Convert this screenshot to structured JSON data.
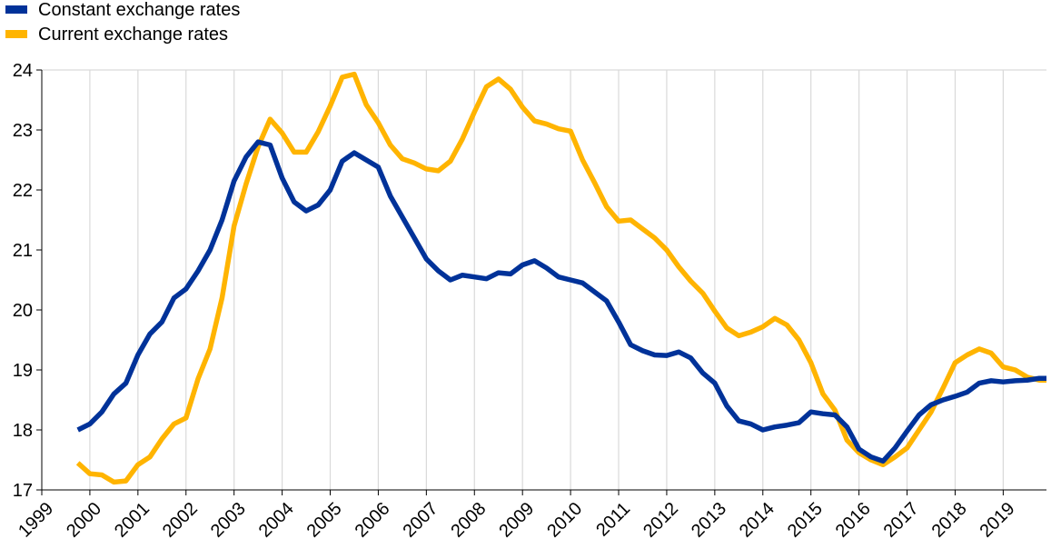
{
  "chart_data": {
    "type": "line",
    "title": "",
    "xlabel": "",
    "ylabel": "",
    "ylim": [
      17,
      24
    ],
    "yticks": [
      "17",
      "18",
      "19",
      "20",
      "21",
      "22",
      "23",
      "24"
    ],
    "xlim": [
      1999,
      2019.9
    ],
    "xticks": [
      "1999",
      "2000",
      "2001",
      "2002",
      "2003",
      "2004",
      "2005",
      "2006",
      "2007",
      "2008",
      "2009",
      "2010",
      "2011",
      "2012",
      "2013",
      "2014",
      "2015",
      "2016",
      "2017",
      "2018",
      "2019"
    ],
    "grid": "vertical",
    "legend_position": "top-left",
    "series": [
      {
        "name": "Constant exchange rates",
        "color": "#003299",
        "x": [
          1999.75,
          2000.0,
          2000.25,
          2000.5,
          2000.75,
          2001.0,
          2001.25,
          2001.5,
          2001.75,
          2002.0,
          2002.25,
          2002.5,
          2002.75,
          2003.0,
          2003.25,
          2003.5,
          2003.75,
          2004.0,
          2004.25,
          2004.5,
          2004.75,
          2005.0,
          2005.25,
          2005.5,
          2005.75,
          2006.0,
          2006.25,
          2006.5,
          2006.75,
          2007.0,
          2007.25,
          2007.5,
          2007.75,
          2008.0,
          2008.25,
          2008.5,
          2008.75,
          2009.0,
          2009.25,
          2009.5,
          2009.75,
          2010.0,
          2010.25,
          2010.5,
          2010.75,
          2011.0,
          2011.25,
          2011.5,
          2011.75,
          2012.0,
          2012.25,
          2012.5,
          2012.75,
          2013.0,
          2013.25,
          2013.5,
          2013.75,
          2014.0,
          2014.25,
          2014.5,
          2014.75,
          2015.0,
          2015.25,
          2015.5,
          2015.75,
          2016.0,
          2016.25,
          2016.5,
          2016.75,
          2017.0,
          2017.25,
          2017.5,
          2017.75,
          2018.0,
          2018.25,
          2018.5,
          2018.75,
          2019.0,
          2019.25,
          2019.5,
          2019.75,
          2019.9
        ],
        "values": [
          18.0,
          18.1,
          18.3,
          18.6,
          18.78,
          19.25,
          19.6,
          19.8,
          20.2,
          20.35,
          20.65,
          21.0,
          21.5,
          22.15,
          22.55,
          22.8,
          22.75,
          22.2,
          21.8,
          21.65,
          21.75,
          22.0,
          22.48,
          22.62,
          22.5,
          22.38,
          21.9,
          21.55,
          21.2,
          20.85,
          20.65,
          20.5,
          20.58,
          20.55,
          20.52,
          20.62,
          20.6,
          20.75,
          20.82,
          20.7,
          20.55,
          20.5,
          20.45,
          20.3,
          20.15,
          19.8,
          19.42,
          19.32,
          19.25,
          19.24,
          19.3,
          19.2,
          18.95,
          18.78,
          18.4,
          18.15,
          18.1,
          18.0,
          18.05,
          18.08,
          18.12,
          18.3,
          18.27,
          18.25,
          18.05,
          17.68,
          17.55,
          17.48,
          17.7,
          17.98,
          18.25,
          18.42,
          18.5,
          18.56,
          18.63,
          18.78,
          18.82,
          18.8,
          18.82,
          18.83,
          18.86,
          18.86
        ]
      },
      {
        "name": "Current exchange rates",
        "color": "#FFB400",
        "x": [
          1999.75,
          2000.0,
          2000.25,
          2000.5,
          2000.75,
          2001.0,
          2001.25,
          2001.5,
          2001.75,
          2002.0,
          2002.25,
          2002.5,
          2002.75,
          2003.0,
          2003.25,
          2003.5,
          2003.75,
          2004.0,
          2004.25,
          2004.5,
          2004.75,
          2005.0,
          2005.25,
          2005.5,
          2005.75,
          2006.0,
          2006.25,
          2006.5,
          2006.75,
          2007.0,
          2007.25,
          2007.5,
          2007.75,
          2008.0,
          2008.25,
          2008.5,
          2008.75,
          2009.0,
          2009.25,
          2009.5,
          2009.75,
          2010.0,
          2010.25,
          2010.5,
          2010.75,
          2011.0,
          2011.25,
          2011.5,
          2011.75,
          2012.0,
          2012.25,
          2012.5,
          2012.75,
          2013.0,
          2013.25,
          2013.5,
          2013.75,
          2014.0,
          2014.25,
          2014.5,
          2014.75,
          2015.0,
          2015.25,
          2015.5,
          2015.75,
          2016.0,
          2016.25,
          2016.5,
          2016.75,
          2017.0,
          2017.25,
          2017.5,
          2017.75,
          2018.0,
          2018.25,
          2018.5,
          2018.75,
          2019.0,
          2019.25,
          2019.5,
          2019.75,
          2019.9
        ],
        "values": [
          17.45,
          17.27,
          17.25,
          17.13,
          17.15,
          17.42,
          17.55,
          17.85,
          18.1,
          18.2,
          18.85,
          19.35,
          20.2,
          21.4,
          22.1,
          22.72,
          23.18,
          22.95,
          22.63,
          22.63,
          22.97,
          23.4,
          23.88,
          23.93,
          23.42,
          23.12,
          22.75,
          22.52,
          22.45,
          22.35,
          22.32,
          22.48,
          22.85,
          23.3,
          23.72,
          23.85,
          23.68,
          23.38,
          23.15,
          23.1,
          23.02,
          22.98,
          22.5,
          22.12,
          21.72,
          21.48,
          21.5,
          21.35,
          21.2,
          21.0,
          20.72,
          20.48,
          20.28,
          19.98,
          19.7,
          19.57,
          19.63,
          19.72,
          19.86,
          19.75,
          19.5,
          19.12,
          18.6,
          18.33,
          17.83,
          17.62,
          17.5,
          17.42,
          17.55,
          17.7,
          18.0,
          18.3,
          18.7,
          19.12,
          19.25,
          19.35,
          19.28,
          19.05,
          19.0,
          18.88,
          18.83,
          18.83
        ]
      }
    ]
  }
}
